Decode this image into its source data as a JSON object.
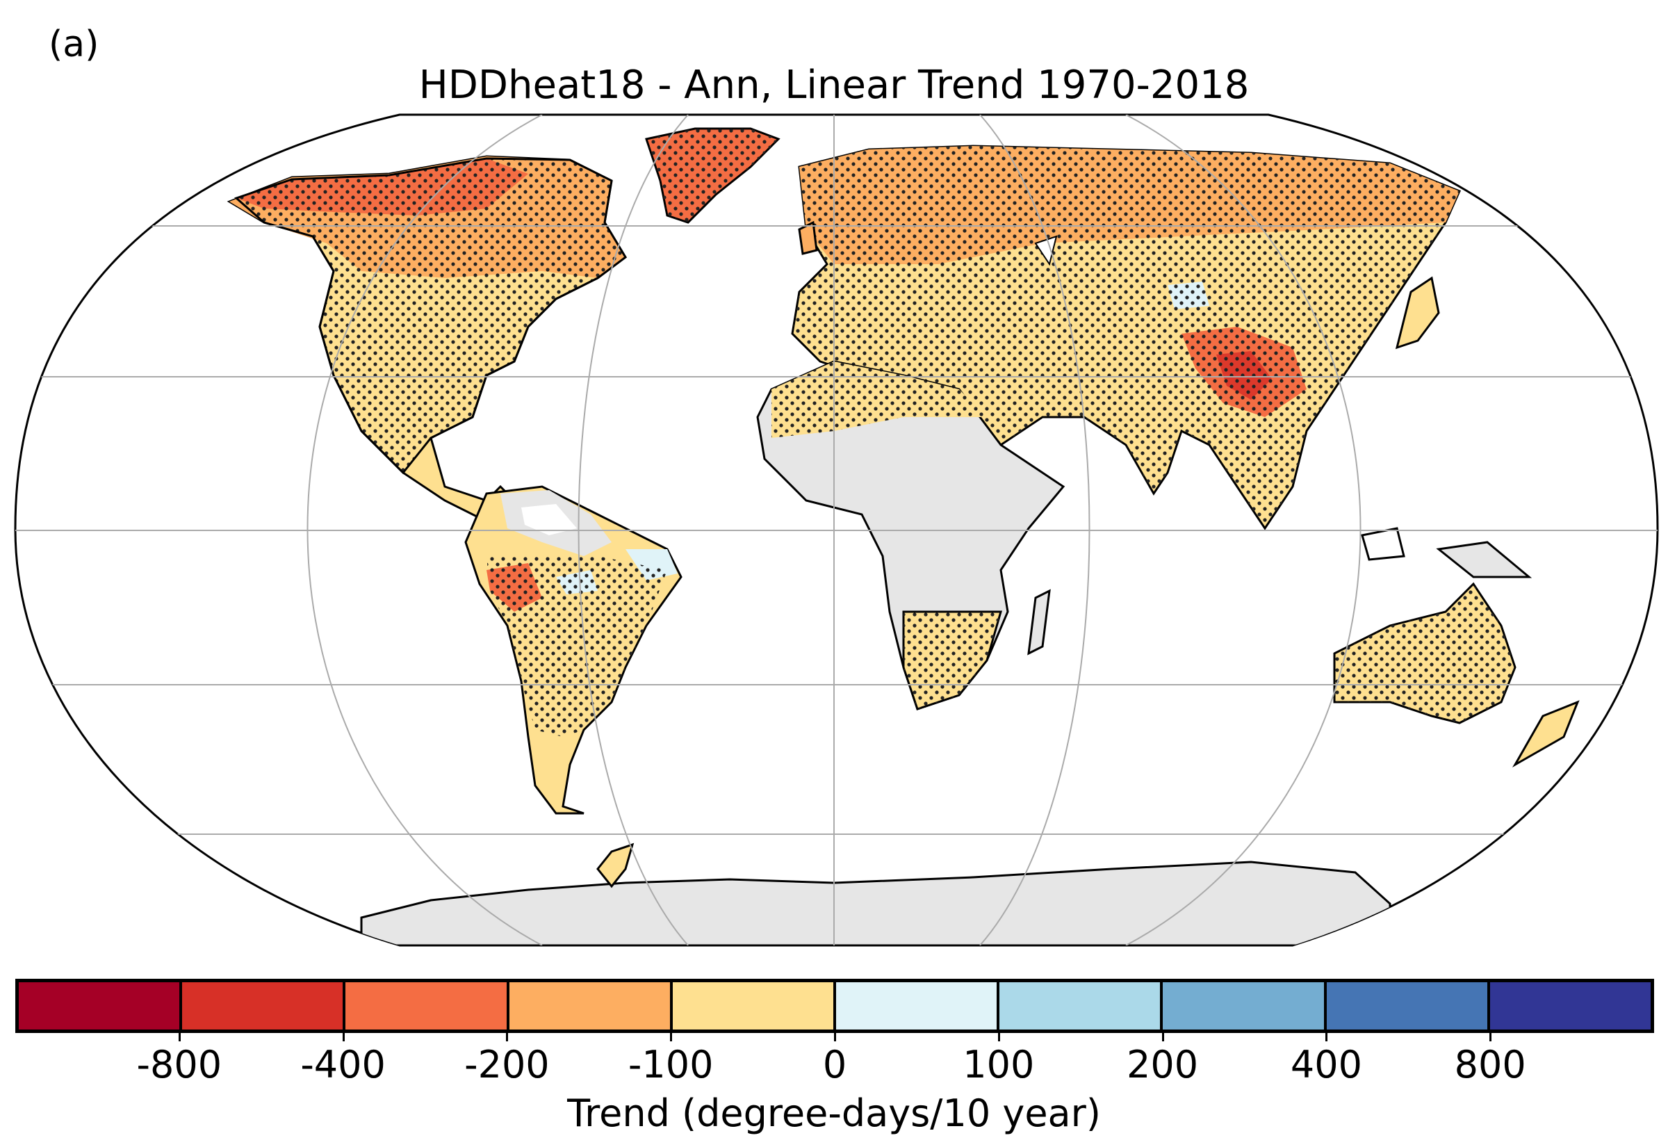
{
  "panel_label": "(a)",
  "title": "HDDheat18 - Ann, Linear Trend 1970-2018",
  "colorbar": {
    "label": "Trend (degree-days/10 year)",
    "ticks": [
      "-800",
      "-400",
      "-200",
      "-100",
      "0",
      "100",
      "200",
      "400",
      "800"
    ],
    "colors": [
      "#a50026",
      "#d73027",
      "#f46d43",
      "#fdae61",
      "#fee090",
      "#e0f3f8",
      "#abd9e9",
      "#74add1",
      "#4575b4",
      "#313695"
    ]
  },
  "map": {
    "projection": "robinson",
    "no_data_color": "#e6e6e6",
    "stippling": "significant trend"
  }
}
